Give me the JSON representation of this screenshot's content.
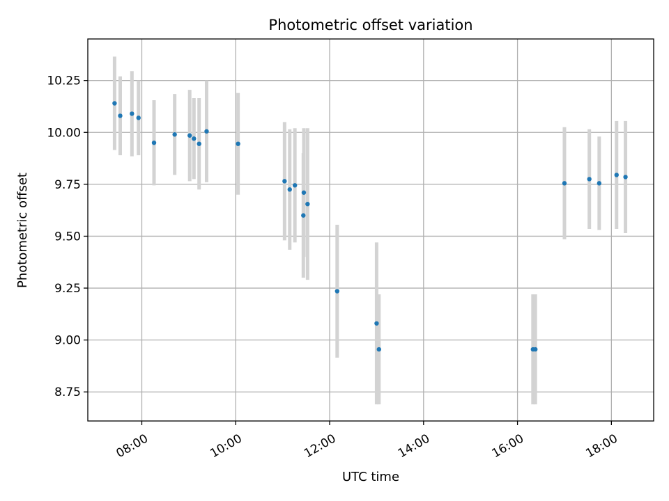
{
  "chart_data": {
    "type": "scatter",
    "title": "Photometric offset variation",
    "xlabel": "UTC time",
    "ylabel": "Photometric offset",
    "x_unit": "hours (UTC)",
    "xlim": [
      6.85,
      18.9
    ],
    "ylim": [
      8.61,
      10.45
    ],
    "xticks": [
      {
        "value": 8,
        "label": "08:00"
      },
      {
        "value": 10,
        "label": "10:00"
      },
      {
        "value": 12,
        "label": "12:00"
      },
      {
        "value": 14,
        "label": "14:00"
      },
      {
        "value": 16,
        "label": "16:00"
      },
      {
        "value": 18,
        "label": "18:00"
      }
    ],
    "yticks": [
      {
        "value": 8.75,
        "label": "8.75"
      },
      {
        "value": 9.0,
        "label": "9.00"
      },
      {
        "value": 9.25,
        "label": "9.25"
      },
      {
        "value": 9.5,
        "label": "9.50"
      },
      {
        "value": 9.75,
        "label": "9.75"
      },
      {
        "value": 10.0,
        "label": "10.00"
      },
      {
        "value": 10.25,
        "label": "10.25"
      }
    ],
    "grid": true,
    "marker_color": "#1f77b4",
    "errorbar_color": "#d3d3d3",
    "points": [
      {
        "time": "07:25",
        "x": 7.42,
        "y": 10.14,
        "yerr": 0.225
      },
      {
        "time": "07:32",
        "x": 7.54,
        "y": 10.08,
        "yerr": 0.19
      },
      {
        "time": "07:47",
        "x": 7.79,
        "y": 10.09,
        "yerr": 0.205
      },
      {
        "time": "07:56",
        "x": 7.93,
        "y": 10.07,
        "yerr": 0.18
      },
      {
        "time": "08:16",
        "x": 8.26,
        "y": 9.95,
        "yerr": 0.205
      },
      {
        "time": "08:42",
        "x": 8.7,
        "y": 9.99,
        "yerr": 0.195
      },
      {
        "time": "09:01",
        "x": 9.02,
        "y": 9.985,
        "yerr": 0.22
      },
      {
        "time": "09:07",
        "x": 9.11,
        "y": 9.97,
        "yerr": 0.195
      },
      {
        "time": "09:13",
        "x": 9.22,
        "y": 9.945,
        "yerr": 0.22
      },
      {
        "time": "09:23",
        "x": 9.38,
        "y": 10.005,
        "yerr": 0.245
      },
      {
        "time": "10:03",
        "x": 10.05,
        "y": 9.945,
        "yerr": 0.245
      },
      {
        "time": "11:02",
        "x": 11.04,
        "y": 9.765,
        "yerr": 0.285
      },
      {
        "time": "11:09",
        "x": 11.15,
        "y": 9.725,
        "yerr": 0.29
      },
      {
        "time": "11:16",
        "x": 11.26,
        "y": 9.745,
        "yerr": 0.275
      },
      {
        "time": "11:27",
        "x": 11.45,
        "y": 9.71,
        "yerr": 0.31
      },
      {
        "time": "11:26",
        "x": 11.44,
        "y": 9.6,
        "yerr": 0.3
      },
      {
        "time": "11:32",
        "x": 11.53,
        "y": 9.655,
        "yerr": 0.365
      },
      {
        "time": "12:09",
        "x": 12.16,
        "y": 9.235,
        "yerr": 0.32
      },
      {
        "time": "13:00",
        "x": 13.0,
        "y": 9.08,
        "yerr": 0.39
      },
      {
        "time": "13:03",
        "x": 13.05,
        "y": 8.955,
        "yerr": 0.265
      },
      {
        "time": "16:20",
        "x": 16.33,
        "y": 8.955,
        "yerr": 0.265
      },
      {
        "time": "16:23",
        "x": 16.38,
        "y": 8.955,
        "yerr": 0.265
      },
      {
        "time": "17:00",
        "x": 17.0,
        "y": 9.755,
        "yerr": 0.27
      },
      {
        "time": "17:32",
        "x": 17.53,
        "y": 9.775,
        "yerr": 0.24
      },
      {
        "time": "17:44",
        "x": 17.74,
        "y": 9.755,
        "yerr": 0.225
      },
      {
        "time": "18:07",
        "x": 18.11,
        "y": 9.795,
        "yerr": 0.26
      },
      {
        "time": "18:18",
        "x": 18.3,
        "y": 9.785,
        "yerr": 0.27
      }
    ]
  }
}
